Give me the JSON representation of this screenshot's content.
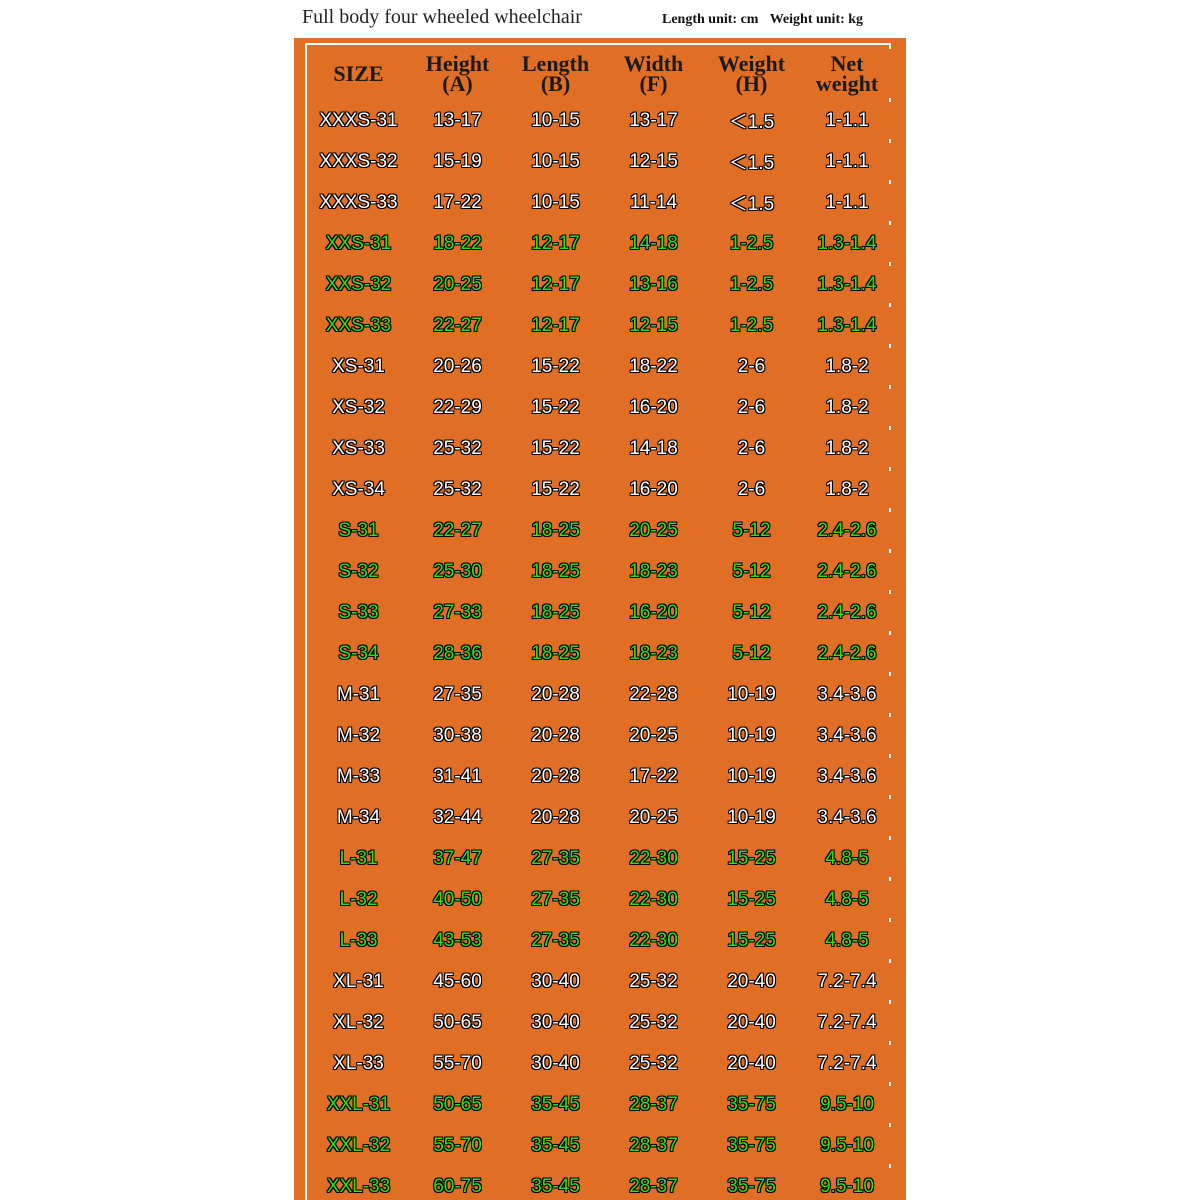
{
  "header": {
    "title": "Full body four wheeled wheelchair",
    "length_unit": "Length unit: cm",
    "weight_unit": "Weight unit: kg"
  },
  "colors": {
    "panel": "#e06e25",
    "grid": "#ffffff",
    "highlight_text": "#2ee01c",
    "normal_text": "#ffffff"
  },
  "table": {
    "columns": [
      {
        "line1": "SIZE",
        "line2": ""
      },
      {
        "line1": "Height",
        "line2": "(A)"
      },
      {
        "line1": "Length",
        "line2": "(B)"
      },
      {
        "line1": "Width",
        "line2": "(F)"
      },
      {
        "line1": "Weight",
        "line2": "(H)"
      },
      {
        "line1": "Net",
        "line2": "weight"
      }
    ],
    "rows": [
      {
        "highlight": false,
        "cells": [
          "XXXS-31",
          "13-17",
          "10-15",
          "13-17",
          "＜1.5",
          "1-1.1"
        ]
      },
      {
        "highlight": false,
        "cells": [
          "XXXS-32",
          "15-19",
          "10-15",
          "12-15",
          "＜1.5",
          "1-1.1"
        ]
      },
      {
        "highlight": false,
        "cells": [
          "XXXS-33",
          "17-22",
          "10-15",
          "11-14",
          "＜1.5",
          "1-1.1"
        ]
      },
      {
        "highlight": true,
        "cells": [
          "XXS-31",
          "18-22",
          "12-17",
          "14-18",
          "1-2.5",
          "1.3-1.4"
        ]
      },
      {
        "highlight": true,
        "cells": [
          "XXS-32",
          "20-25",
          "12-17",
          "13-16",
          "1-2.5",
          "1.3-1.4"
        ]
      },
      {
        "highlight": true,
        "cells": [
          "XXS-33",
          "22-27",
          "12-17",
          "12-15",
          "1-2.5",
          "1.3-1.4"
        ]
      },
      {
        "highlight": false,
        "cells": [
          "XS-31",
          "20-26",
          "15-22",
          "18-22",
          "2-6",
          "1.8-2"
        ]
      },
      {
        "highlight": false,
        "cells": [
          "XS-32",
          "22-29",
          "15-22",
          "16-20",
          "2-6",
          "1.8-2"
        ]
      },
      {
        "highlight": false,
        "cells": [
          "XS-33",
          "25-32",
          "15-22",
          "14-18",
          "2-6",
          "1.8-2"
        ]
      },
      {
        "highlight": false,
        "cells": [
          "XS-34",
          "25-32",
          "15-22",
          "16-20",
          "2-6",
          "1.8-2"
        ]
      },
      {
        "highlight": true,
        "cells": [
          "S-31",
          "22-27",
          "18-25",
          "20-25",
          "5-12",
          "2.4-2.6"
        ]
      },
      {
        "highlight": true,
        "cells": [
          "S-32",
          "25-30",
          "18-25",
          "18-23",
          "5-12",
          "2.4-2.6"
        ]
      },
      {
        "highlight": true,
        "cells": [
          "S-33",
          "27-33",
          "18-25",
          "16-20",
          "5-12",
          "2.4-2.6"
        ]
      },
      {
        "highlight": true,
        "cells": [
          "S-34",
          "28-36",
          "18-25",
          "18-23",
          "5-12",
          "2.4-2.6"
        ]
      },
      {
        "highlight": false,
        "cells": [
          "M-31",
          "27-35",
          "20-28",
          "22-28",
          "10-19",
          "3.4-3.6"
        ]
      },
      {
        "highlight": false,
        "cells": [
          "M-32",
          "30-38",
          "20-28",
          "20-25",
          "10-19",
          "3.4-3.6"
        ]
      },
      {
        "highlight": false,
        "cells": [
          "M-33",
          "31-41",
          "20-28",
          "17-22",
          "10-19",
          "3.4-3.6"
        ]
      },
      {
        "highlight": false,
        "cells": [
          "M-34",
          "32-44",
          "20-28",
          "20-25",
          "10-19",
          "3.4-3.6"
        ]
      },
      {
        "highlight": true,
        "cells": [
          "L-31",
          "37-47",
          "27-35",
          "22-30",
          "15-25",
          "4.8-5"
        ]
      },
      {
        "highlight": true,
        "cells": [
          "L-32",
          "40-50",
          "27-35",
          "22-30",
          "15-25",
          "4.8-5"
        ]
      },
      {
        "highlight": true,
        "cells": [
          "L-33",
          "43-53",
          "27-35",
          "22-30",
          "15-25",
          "4.8-5"
        ]
      },
      {
        "highlight": false,
        "cells": [
          "XL-31",
          "45-60",
          "30-40",
          "25-32",
          "20-40",
          "7.2-7.4"
        ]
      },
      {
        "highlight": false,
        "cells": [
          "XL-32",
          "50-65",
          "30-40",
          "25-32",
          "20-40",
          "7.2-7.4"
        ]
      },
      {
        "highlight": false,
        "cells": [
          "XL-33",
          "55-70",
          "30-40",
          "25-32",
          "20-40",
          "7.2-7.4"
        ]
      },
      {
        "highlight": true,
        "cells": [
          "XXL-31",
          "50-65",
          "35-45",
          "28-37",
          "35-75",
          "9.5-10"
        ]
      },
      {
        "highlight": true,
        "cells": [
          "XXL-32",
          "55-70",
          "35-45",
          "28-37",
          "35-75",
          "9.5-10"
        ]
      },
      {
        "highlight": true,
        "cells": [
          "XXL-33",
          "60-75",
          "35-45",
          "28-37",
          "35-75",
          "9.5-10"
        ]
      }
    ]
  }
}
